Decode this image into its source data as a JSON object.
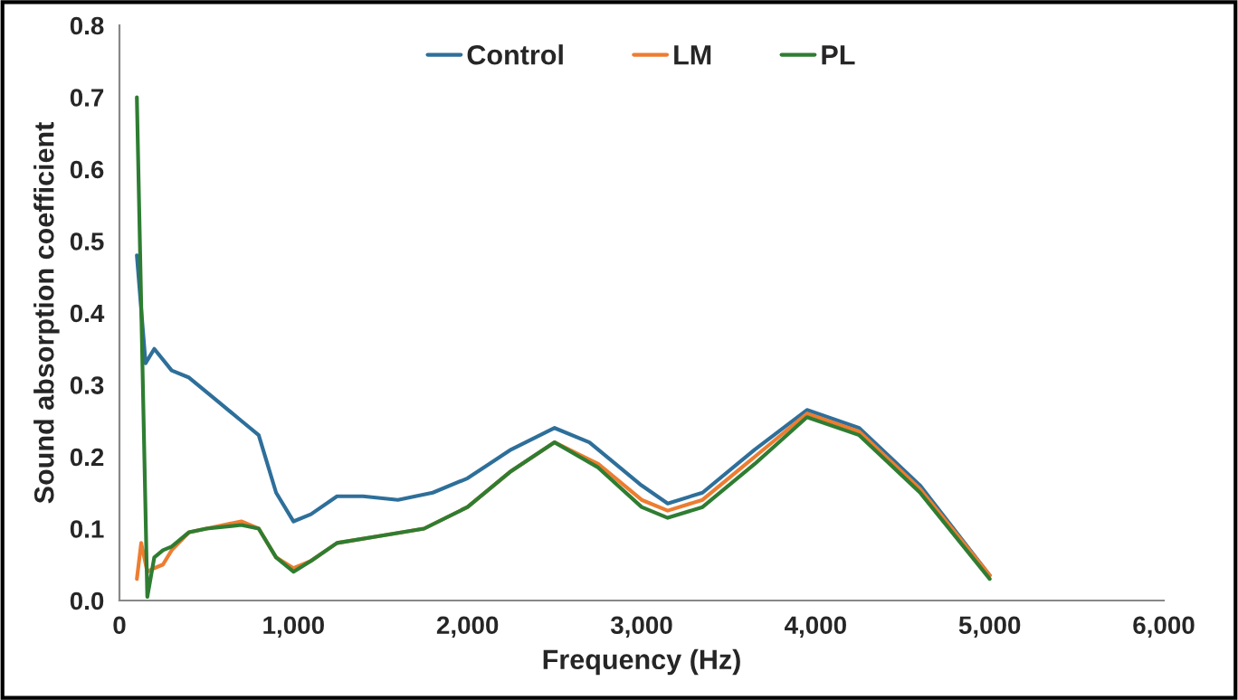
{
  "chart_data": {
    "type": "line",
    "xlabel": "Frequency (Hz)",
    "ylabel": "Sound absorption coefficient",
    "xlim": [
      0,
      6000
    ],
    "xticks": [
      0,
      {
        "value": 1000,
        "label": "1,000"
      },
      {
        "value": 2000,
        "label": "2,000"
      },
      {
        "value": 3000,
        "label": "3,000"
      },
      {
        "value": 4000,
        "label": "4,000"
      },
      {
        "value": 5000,
        "label": "5,000"
      },
      {
        "value": 6000,
        "label": "6,000"
      }
    ],
    "ylim": [
      0,
      0.8
    ],
    "yticks": [
      {
        "value": 0,
        "label": "0.0"
      },
      0.1,
      0.2,
      0.3,
      0.4,
      0.5,
      0.6,
      0.7,
      0.8
    ],
    "grid": false,
    "legend": "top",
    "marker": "none",
    "line_style": "solid",
    "series": [
      {
        "name": "Control",
        "color": "#2e6f9a",
        "x": [
          100,
          150,
          200,
          300,
          400,
          550,
          700,
          800,
          900,
          1000,
          1100,
          1250,
          1400,
          1600,
          1800,
          2000,
          2250,
          2500,
          2700,
          3000,
          3150,
          3350,
          3650,
          3950,
          4250,
          4600,
          5000
        ],
        "values": [
          0.48,
          0.33,
          0.35,
          0.32,
          0.31,
          0.28,
          0.25,
          0.23,
          0.15,
          0.11,
          0.12,
          0.145,
          0.145,
          0.14,
          0.15,
          0.17,
          0.21,
          0.24,
          0.22,
          0.16,
          0.135,
          0.15,
          0.21,
          0.265,
          0.24,
          0.16,
          0.035
        ]
      },
      {
        "name": "LM",
        "color": "#ed7d31",
        "x": [
          100,
          125,
          160,
          200,
          250,
          300,
          400,
          500,
          700,
          800,
          900,
          1000,
          1100,
          1250,
          1500,
          1750,
          2000,
          2250,
          2500,
          2750,
          3000,
          3150,
          3350,
          3650,
          3950,
          4250,
          4600,
          5000
        ],
        "values": [
          0.03,
          0.08,
          0.04,
          0.045,
          0.05,
          0.07,
          0.095,
          0.1,
          0.11,
          0.1,
          0.06,
          0.045,
          0.055,
          0.08,
          0.09,
          0.1,
          0.13,
          0.18,
          0.22,
          0.19,
          0.14,
          0.125,
          0.14,
          0.2,
          0.26,
          0.235,
          0.155,
          0.035
        ]
      },
      {
        "name": "PL",
        "color": "#2e7d32",
        "x": [
          100,
          160,
          200,
          250,
          300,
          400,
          500,
          700,
          800,
          900,
          1000,
          1100,
          1250,
          1500,
          1750,
          2000,
          2250,
          2500,
          2750,
          3000,
          3150,
          3350,
          3650,
          3950,
          4250,
          4600,
          5000
        ],
        "values": [
          0.7,
          0.005,
          0.06,
          0.07,
          0.075,
          0.095,
          0.1,
          0.105,
          0.1,
          0.06,
          0.04,
          0.055,
          0.08,
          0.09,
          0.1,
          0.13,
          0.18,
          0.22,
          0.185,
          0.13,
          0.115,
          0.13,
          0.19,
          0.255,
          0.23,
          0.15,
          0.03
        ]
      }
    ]
  }
}
